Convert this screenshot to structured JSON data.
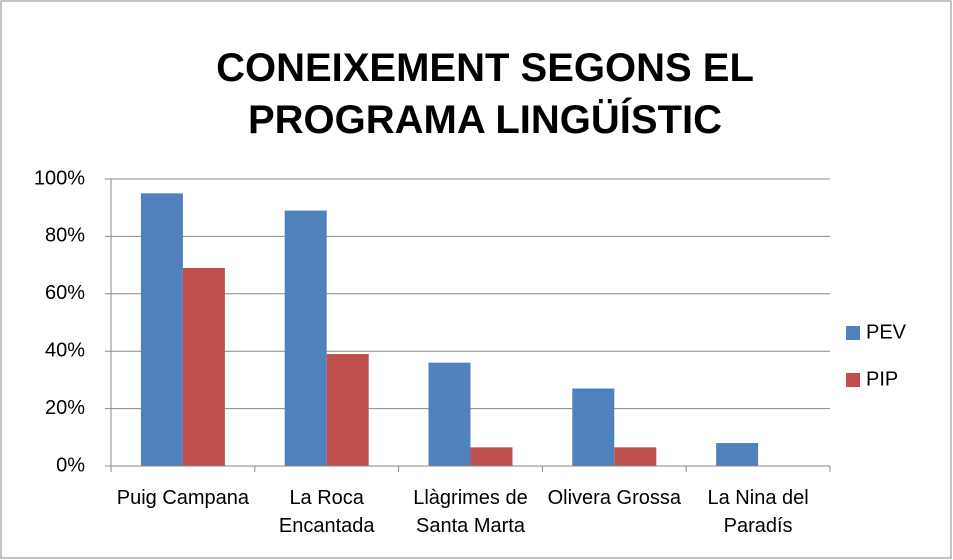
{
  "chart_data": {
    "type": "bar",
    "title": "CONEIXEMENT SEGONS EL PROGRAMA LINGÜÍSTIC",
    "categories": [
      "Puig Campana",
      "La Roca Encantada",
      "Llàgrimes de Santa Marta",
      "Olivera Grossa",
      "La Nina del Paradís"
    ],
    "series": [
      {
        "name": "PEV",
        "color": "#4f81bd",
        "values": [
          95,
          89,
          36,
          27,
          8
        ]
      },
      {
        "name": "PIP",
        "color": "#c0504d",
        "values": [
          69,
          39,
          6.5,
          6.5,
          0
        ]
      }
    ],
    "ylim": [
      0,
      100
    ],
    "yticks": [
      {
        "value": 0,
        "label": "0%"
      },
      {
        "value": 20,
        "label": "20%"
      },
      {
        "value": 40,
        "label": "40%"
      },
      {
        "value": 60,
        "label": "60%"
      },
      {
        "value": 80,
        "label": "80%"
      },
      {
        "value": 100,
        "label": "100%"
      }
    ],
    "grid": true,
    "legend": "right"
  }
}
